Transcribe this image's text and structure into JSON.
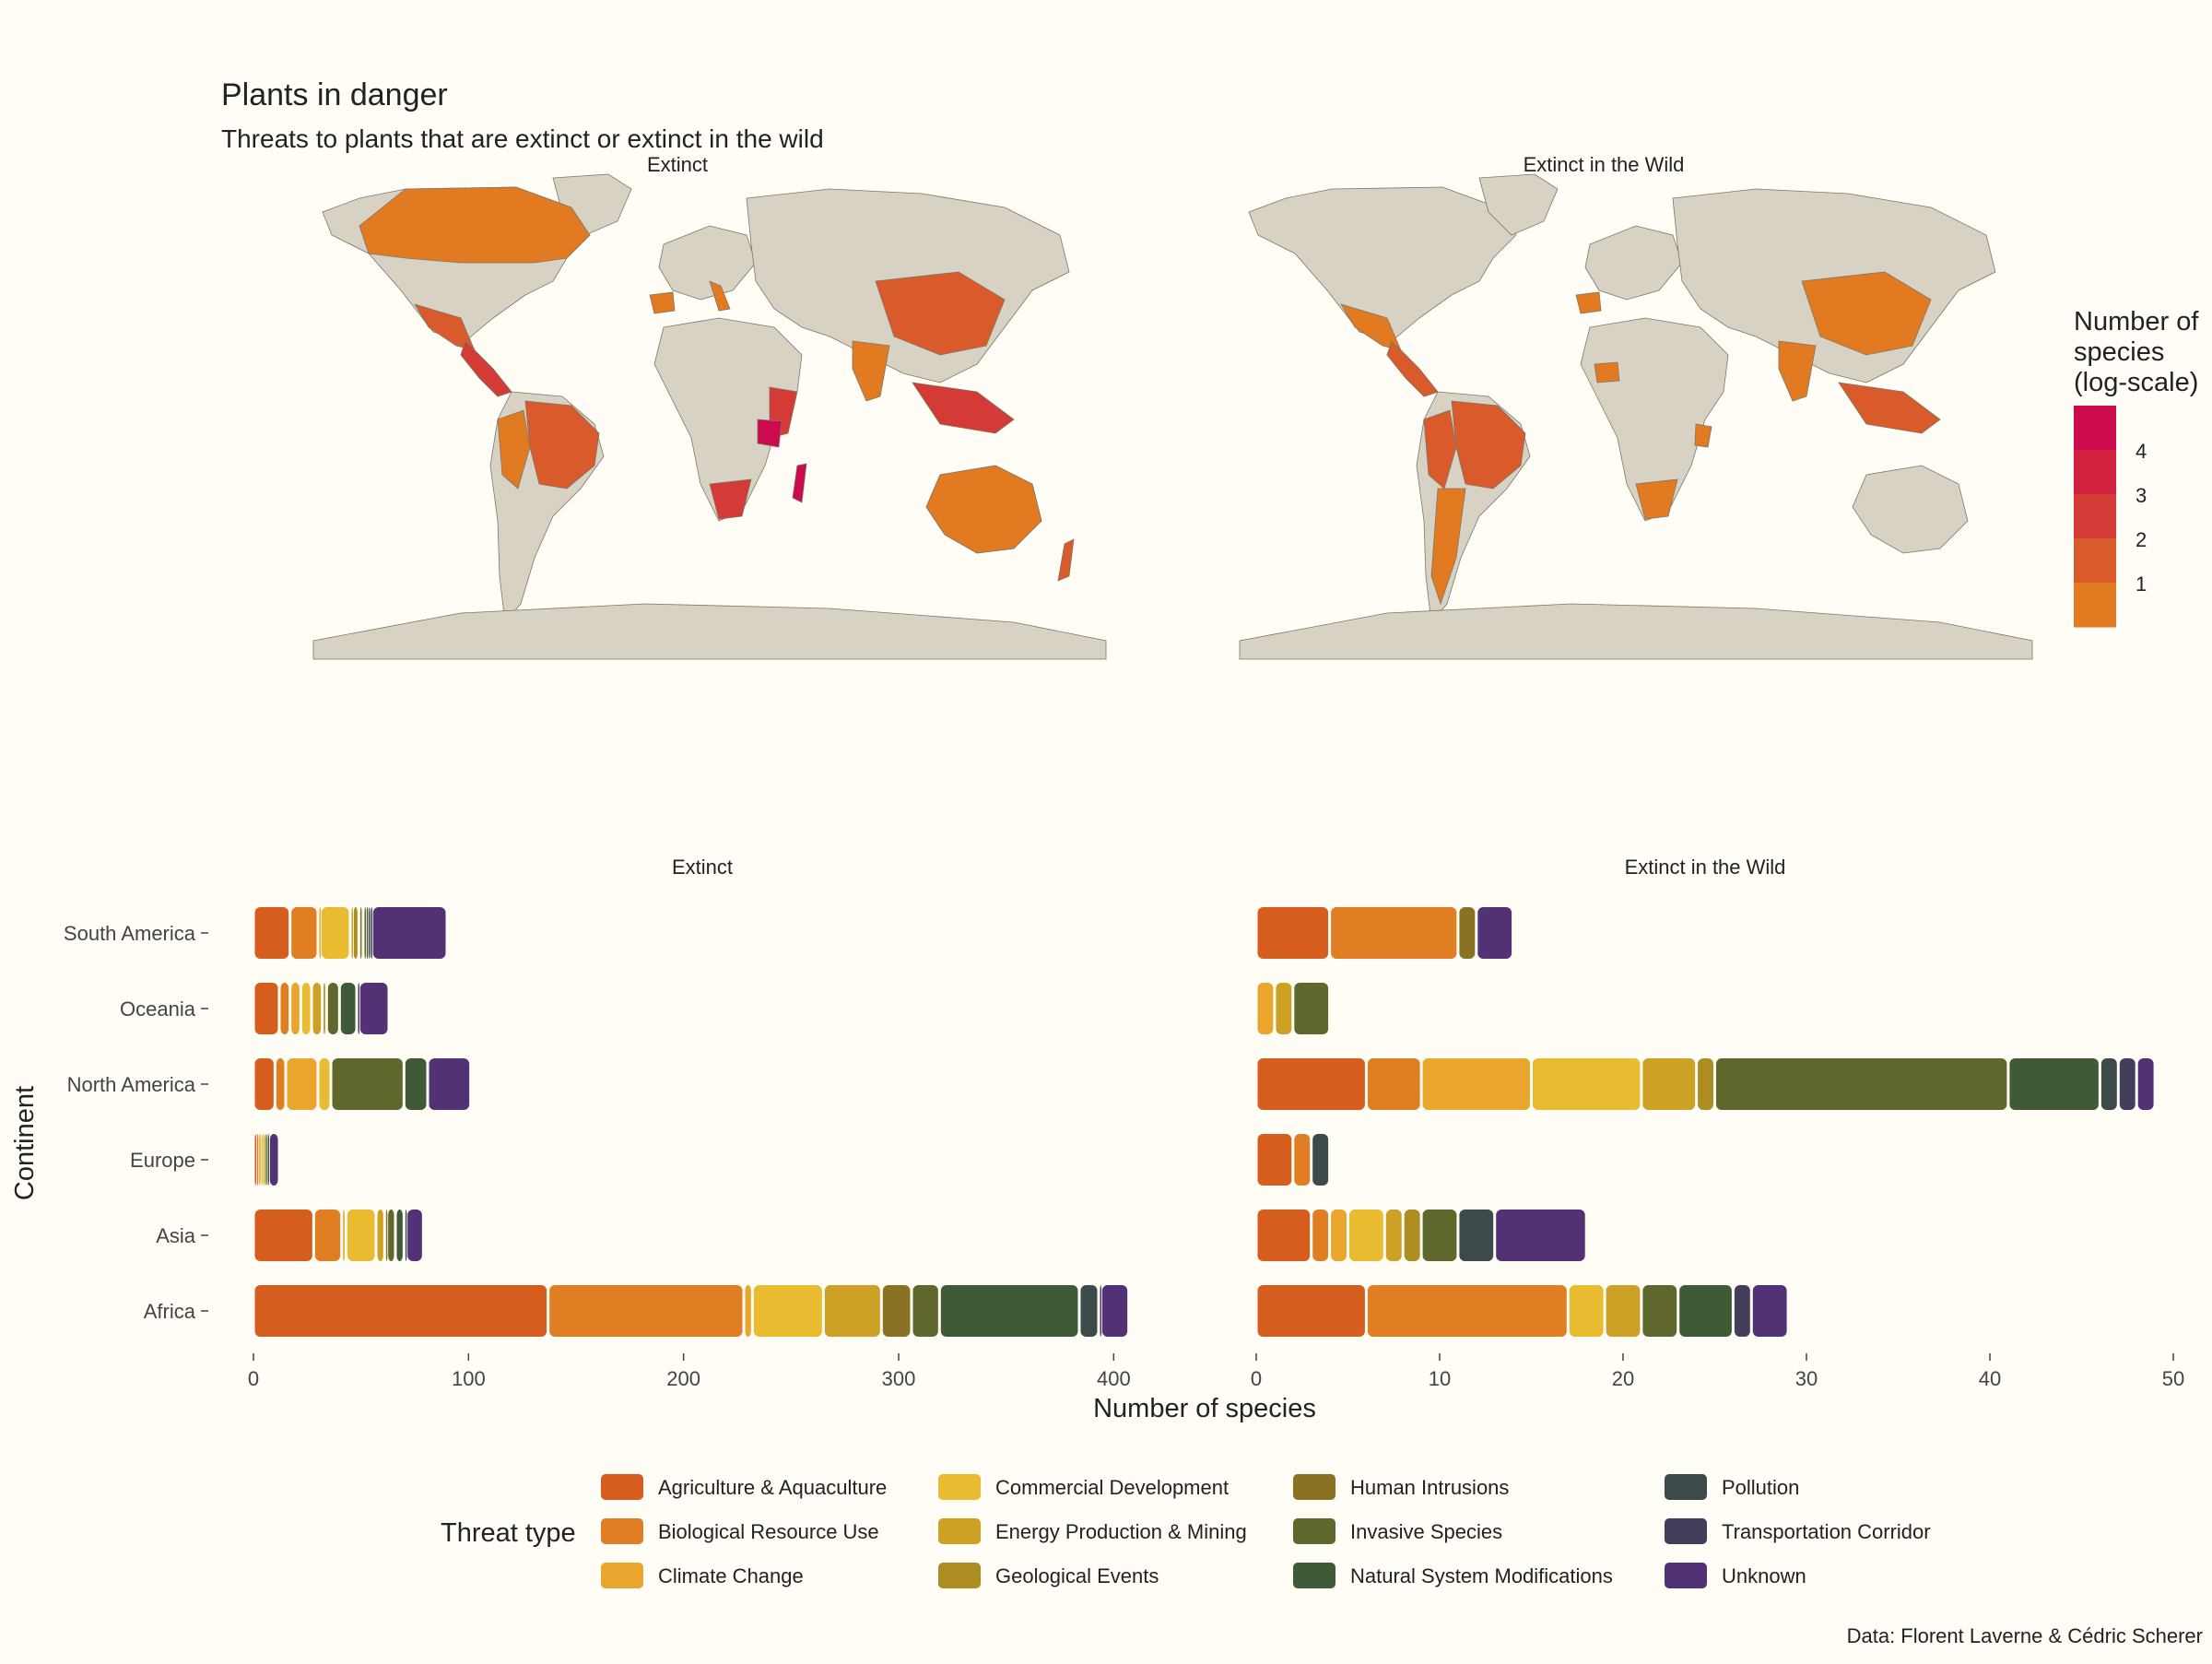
{
  "title": "Plants in danger",
  "subtitle": "Threats to plants that are extinct or extinct in the wild",
  "caption": "Data: Florent Laverne & Cédric Scherer",
  "colors": {
    "background": "#fffdf5",
    "land": "#d7d2c4",
    "ocean": "#fffdf5",
    "border": "#7c7768"
  },
  "maps": {
    "panels": [
      "Extinct",
      "Extinct in the Wild"
    ],
    "legend": {
      "title": "Number of species (log-scale)",
      "title_lines": [
        "Number of",
        "species",
        "(log-scale)"
      ],
      "ticks": [
        "4",
        "3",
        "2",
        "1"
      ],
      "colors": [
        "#cc0a4d",
        "#d0223f",
        "#d43b37",
        "#d95a2b",
        "#e17a20"
      ]
    }
  },
  "chart_data": {
    "type": "bar",
    "orientation": "horizontal",
    "stacked": true,
    "xlabel": "Number of species",
    "ylabel": "Continent",
    "legend_title": "Threat type",
    "legend_position": "bottom",
    "categories": [
      "South America",
      "Oceania",
      "North America",
      "Europe",
      "Asia",
      "Africa"
    ],
    "threat_types": [
      {
        "name": "Agriculture & Aquaculture",
        "color": "#d55e1e"
      },
      {
        "name": "Biological Resource Use",
        "color": "#e07e24"
      },
      {
        "name": "Climate Change",
        "color": "#e9a52e"
      },
      {
        "name": "Commercial Development",
        "color": "#e9bb30"
      },
      {
        "name": "Energy Production & Mining",
        "color": "#cda126"
      },
      {
        "name": "Geological Events",
        "color": "#ad8c22"
      },
      {
        "name": "Human Intrusions",
        "color": "#8a7224"
      },
      {
        "name": "Invasive Species",
        "color": "#60672c"
      },
      {
        "name": "Natural System Modifications",
        "color": "#3e5a36"
      },
      {
        "name": "Pollution",
        "color": "#3d4a4a"
      },
      {
        "name": "Transportation Corridor",
        "color": "#433e5a"
      },
      {
        "name": "Unknown",
        "color": "#523174"
      }
    ],
    "panels": [
      {
        "label": "Extinct",
        "xlim": [
          0,
          420
        ],
        "ticks": [
          0,
          100,
          200,
          300,
          400
        ],
        "values": {
          "South America": [
            17,
            13,
            1,
            14,
            1,
            3,
            2,
            1,
            1,
            1,
            1,
            35
          ],
          "Oceania": [
            12,
            5,
            5,
            5,
            5,
            2,
            0,
            6,
            8,
            0,
            1,
            14
          ],
          "North America": [
            10,
            5,
            15,
            6,
            0,
            0,
            0,
            34,
            11,
            0,
            0,
            20
          ],
          "Europe": [
            1,
            1,
            1,
            1,
            1,
            0,
            0,
            1,
            1,
            0,
            0,
            5
          ],
          "Asia": [
            28,
            13,
            2,
            14,
            4,
            0,
            1,
            4,
            4,
            1,
            0,
            8
          ],
          "Africa": [
            137,
            91,
            4,
            33,
            27,
            0,
            14,
            13,
            65,
            9,
            1,
            13
          ]
        }
      },
      {
        "label": "Extinct in the Wild",
        "xlim": [
          0,
          50
        ],
        "ticks": [
          0,
          10,
          20,
          30,
          40,
          50
        ],
        "values": {
          "South America": [
            4,
            7,
            0,
            0,
            0,
            0,
            1,
            0,
            0,
            0,
            0,
            2
          ],
          "Oceania": [
            0,
            0,
            1,
            0,
            1,
            0,
            0,
            2,
            0,
            0,
            0,
            0
          ],
          "North America": [
            6,
            3,
            6,
            6,
            3,
            1,
            0,
            16,
            5,
            1,
            1,
            1
          ],
          "Europe": [
            2,
            1,
            0,
            0,
            0,
            0,
            0,
            0,
            0,
            1,
            0,
            0
          ],
          "Asia": [
            3,
            1,
            1,
            2,
            1,
            1,
            0,
            2,
            0,
            2,
            0,
            5
          ],
          "Africa": [
            6,
            11,
            0,
            2,
            2,
            0,
            0,
            2,
            3,
            0,
            1,
            2
          ]
        }
      }
    ]
  }
}
